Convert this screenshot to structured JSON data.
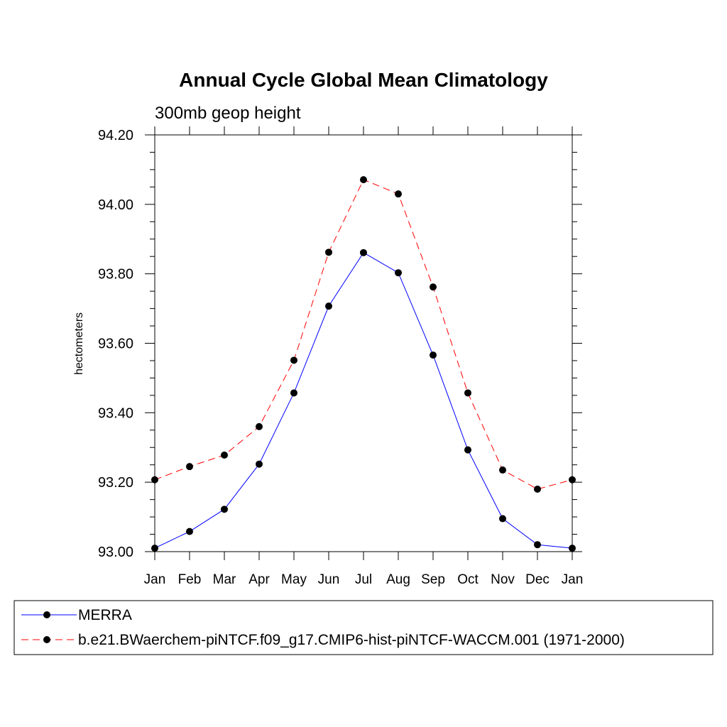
{
  "chart_data": {
    "type": "line",
    "title": "Annual Cycle Global Mean Climatology",
    "subtitle": "300mb geop height",
    "ylabel": "hectometers",
    "xlabel": "",
    "categories": [
      "Jan",
      "Feb",
      "Mar",
      "Apr",
      "May",
      "Jun",
      "Jul",
      "Aug",
      "Sep",
      "Oct",
      "Nov",
      "Dec",
      "Jan"
    ],
    "ylim": [
      93.0,
      94.2
    ],
    "yticks": [
      "93.00",
      "93.20",
      "93.40",
      "93.60",
      "93.80",
      "94.00",
      "94.20"
    ],
    "grid": false,
    "legend_position": "bottom",
    "series": [
      {
        "name": "MERRA",
        "color": "#0000ff",
        "line_style": "solid",
        "marker": "filled-circle",
        "values": [
          93.01,
          93.058,
          93.122,
          93.252,
          93.457,
          93.707,
          93.861,
          93.803,
          93.566,
          93.293,
          93.095,
          93.02,
          93.01
        ]
      },
      {
        "name": "b.e21.BWaerchem-piNTCF.f09_g17.CMIP6-hist-piNTCF-WACCM.001 (1971-2000)",
        "color": "#ff0000",
        "line_style": "dashed",
        "marker": "filled-circle",
        "values": [
          93.207,
          93.245,
          93.278,
          93.36,
          93.551,
          93.862,
          94.071,
          94.03,
          93.762,
          93.457,
          93.235,
          93.18,
          93.207
        ]
      }
    ]
  }
}
